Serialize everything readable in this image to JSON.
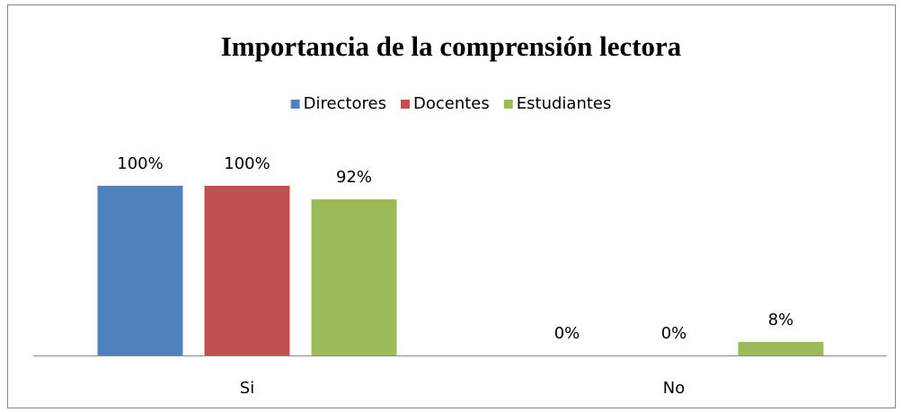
{
  "chart_data": {
    "type": "bar",
    "title": "Importancia de la comprensión lectora",
    "categories": [
      "Si",
      "No"
    ],
    "series": [
      {
        "name": "Directores",
        "color": "#4f81bd",
        "values": [
          100,
          0
        ],
        "value_labels": [
          "100%",
          "0%"
        ]
      },
      {
        "name": "Docentes",
        "color": "#c0504d",
        "values": [
          100,
          0
        ],
        "value_labels": [
          "100%",
          "0%"
        ]
      },
      {
        "name": "Estudiantes",
        "color": "#9bbb59",
        "values": [
          92,
          8
        ],
        "value_labels": [
          "92%",
          "8%"
        ]
      }
    ],
    "legend": "top"
  }
}
